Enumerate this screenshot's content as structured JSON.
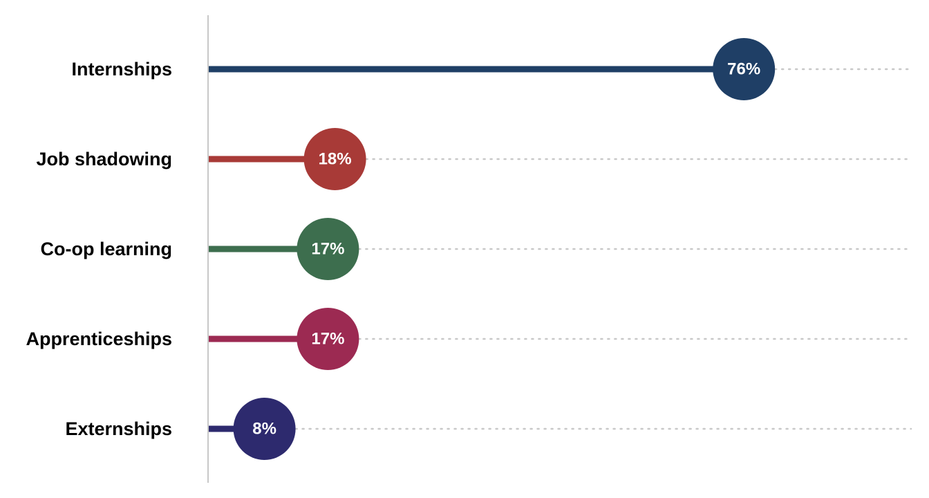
{
  "chart_data": {
    "type": "lollipop",
    "title": "",
    "xlabel": "",
    "ylabel": "",
    "xlim": [
      0,
      100
    ],
    "grid": false,
    "categories": [
      "Internships",
      "Job shadowing",
      "Co-op learning",
      "Apprenticeships",
      "Externships"
    ],
    "values": [
      76,
      18,
      17,
      17,
      8
    ],
    "value_labels": [
      "76%",
      "18%",
      "17%",
      "17%",
      "8%"
    ],
    "colors": [
      "#1f3f66",
      "#a83a37",
      "#3d6e4e",
      "#9c2a52",
      "#2d2a6e"
    ],
    "guide_color": "#c8c8c8",
    "axis_color": "#c8c8c8"
  }
}
